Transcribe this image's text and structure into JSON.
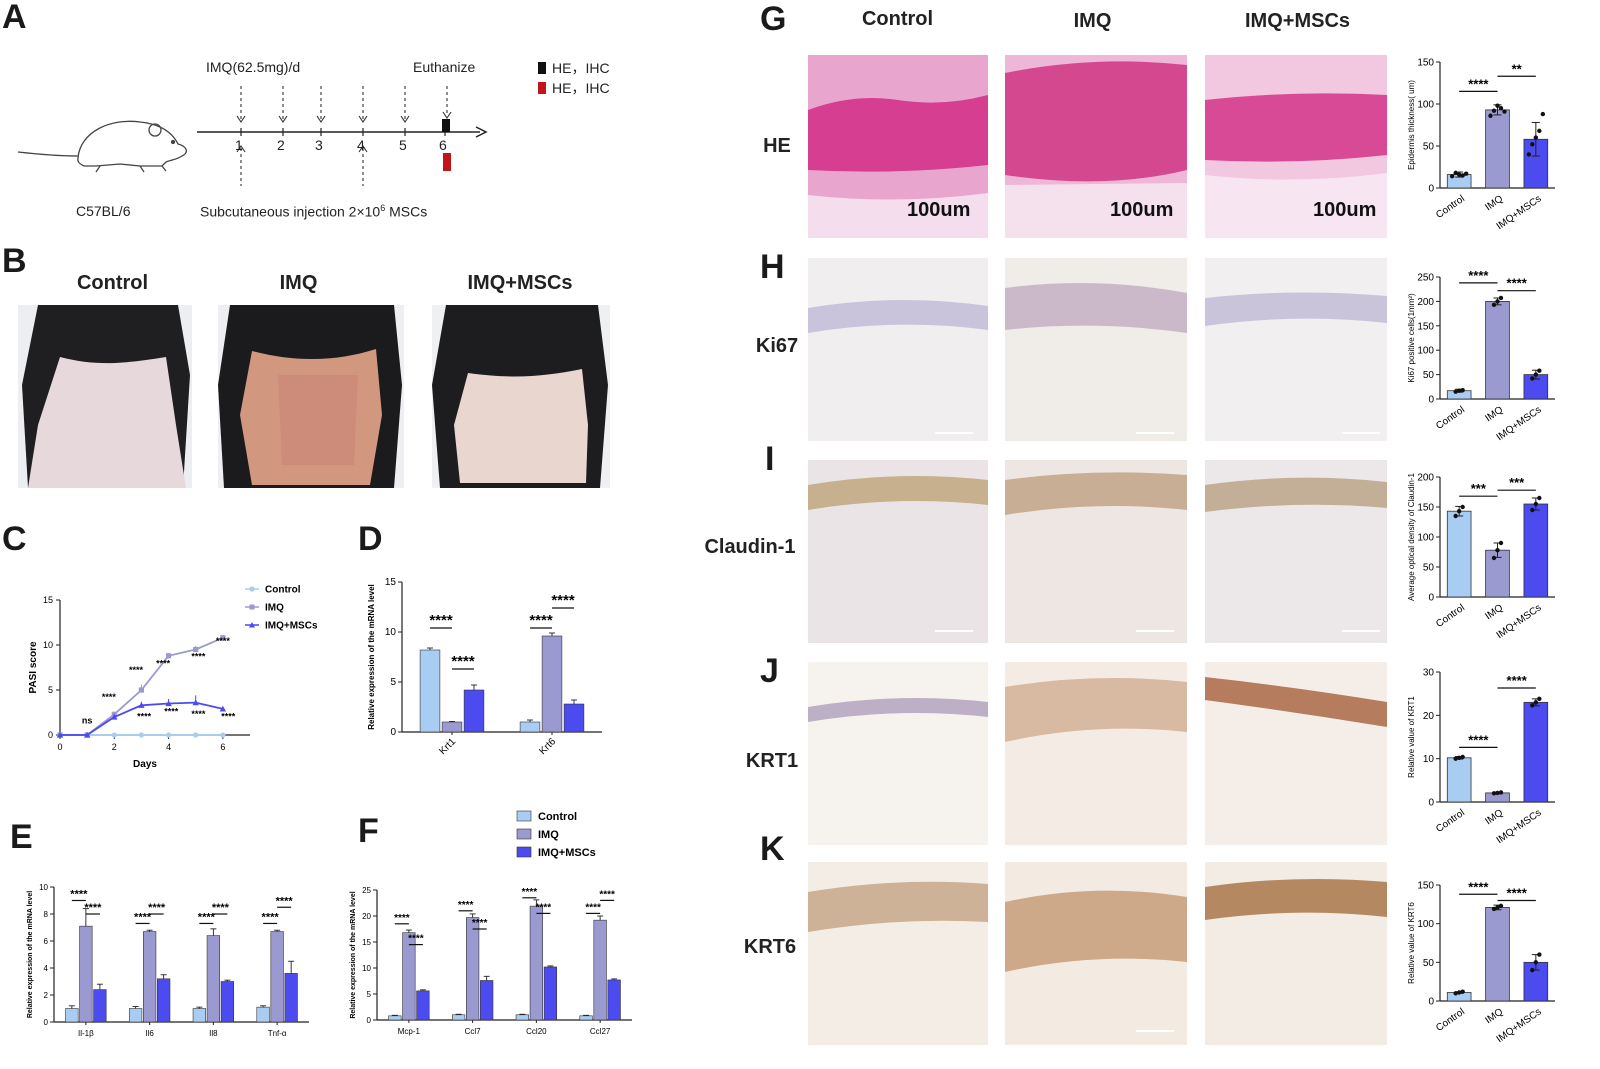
{
  "panel_letters": {
    "a": "A",
    "b": "B",
    "c": "C",
    "d": "D",
    "e": "E",
    "f": "F",
    "g": "G",
    "h": "H",
    "i": "I",
    "j": "J",
    "k": "K"
  },
  "colors": {
    "control": "#a9cdf2",
    "imq": "#9a9ad0",
    "imq_mscs": "#4b4bf0",
    "axis": "#222222",
    "he_bg": "#e8a6cf",
    "he_epi": "#d63f91",
    "ihc_bg": "#f3ede4",
    "dermis": "#ece2f0"
  },
  "panel_a": {
    "drug_label": "IMQ(62.5mg)/d",
    "euthanize_label": "Euthanize",
    "legend": [
      "HE，IHC",
      "HE，IHC"
    ],
    "legend_colors": [
      "#111111",
      "#c0161b"
    ],
    "days": [
      "1",
      "2",
      "3",
      "4",
      "5",
      "6"
    ],
    "mouse_strain": "C57BL/6",
    "injection_label": "Subcutaneous injection 2×10",
    "injection_sup": "6",
    "injection_tail": " MSCs"
  },
  "panel_b": {
    "groups": [
      "Control",
      "IMQ",
      "IMQ+MSCs"
    ]
  },
  "panel_g_headers": [
    "Control",
    "IMQ",
    "IMQ+MSCs"
  ],
  "row_labels": {
    "he": "HE",
    "ki67": "Ki67",
    "claudin": "Claudin-1",
    "krt1": "KRT1",
    "krt6": "KRT6"
  },
  "scale_text": "100um",
  "chart_data": [
    {
      "id": "C",
      "type": "line",
      "xlabel": "Days",
      "ylabel": "PASI score",
      "x": [
        0,
        1,
        2,
        3,
        4,
        5,
        6
      ],
      "xticks": [
        0,
        2,
        4,
        6
      ],
      "yticks": [
        0,
        5,
        10,
        15
      ],
      "ylim": [
        0,
        15
      ],
      "xlim": [
        0,
        7
      ],
      "series": [
        {
          "name": "Control",
          "marker": "circle",
          "values": [
            0,
            0,
            0,
            0,
            0,
            0,
            0
          ],
          "errors": [
            0,
            0,
            0,
            0,
            0,
            0,
            0
          ]
        },
        {
          "name": "IMQ",
          "marker": "square",
          "values": [
            0,
            0,
            2.3,
            5,
            8.8,
            9.5,
            10.8
          ],
          "errors": [
            0,
            0,
            0.3,
            0.6,
            0.3,
            0.4,
            0.3
          ]
        },
        {
          "name": "IMQ+MSCs",
          "marker": "triangle",
          "values": [
            0,
            0,
            2,
            3.3,
            3.5,
            3.6,
            2.9
          ],
          "errors": [
            0,
            0,
            0.3,
            0.4,
            0.5,
            0.8,
            0.2
          ]
        }
      ],
      "annotations": [
        {
          "x": 1,
          "y": 1.3,
          "text": "ns"
        },
        {
          "x": 1.8,
          "y": 3.9,
          "text": "****"
        },
        {
          "x": 2.8,
          "y": 6.9,
          "text": "****"
        },
        {
          "x": 3.8,
          "y": 7.6,
          "text": "****"
        },
        {
          "x": 5.1,
          "y": 8.4,
          "text": "****"
        },
        {
          "x": 6.0,
          "y": 10.1,
          "text": "****"
        },
        {
          "x": 3.1,
          "y": 1.7,
          "text": "****"
        },
        {
          "x": 4.1,
          "y": 2.3,
          "text": "****"
        },
        {
          "x": 5.1,
          "y": 2.0,
          "text": "****"
        },
        {
          "x": 6.2,
          "y": 1.7,
          "text": "****"
        }
      ]
    },
    {
      "id": "D",
      "type": "bar",
      "ylabel": "Relative expression of the mRNA level",
      "categories": [
        "Krt1",
        "Krt6"
      ],
      "yticks": [
        0,
        5,
        10,
        15
      ],
      "ylim": [
        0,
        15
      ],
      "series": [
        {
          "name": "Control",
          "values": [
            8.2,
            1.0
          ],
          "errors": [
            0.2,
            0.2
          ]
        },
        {
          "name": "IMQ",
          "values": [
            1.0,
            9.6
          ],
          "errors": [
            0.05,
            0.3
          ]
        },
        {
          "name": "IMQ+MSCs",
          "values": [
            4.2,
            2.8
          ],
          "errors": [
            0.5,
            0.4
          ]
        }
      ],
      "sig": [
        {
          "cat": 0,
          "from": 0,
          "to": 1,
          "y": 10.4,
          "text": "****"
        },
        {
          "cat": 0,
          "from": 1,
          "to": 2,
          "y": 6.3,
          "text": "****"
        },
        {
          "cat": 1,
          "from": 0,
          "to": 1,
          "y": 10.4,
          "text": "****"
        },
        {
          "cat": 1,
          "from": 1,
          "to": 2,
          "y": 12.4,
          "text": "****"
        }
      ]
    },
    {
      "id": "E",
      "type": "bar",
      "ylabel": "Relative expression of the mRNA level",
      "categories": [
        "Il-1β",
        "Il6",
        "Il8",
        "Tnf-α"
      ],
      "yticks": [
        0,
        2,
        4,
        6,
        8,
        10
      ],
      "ylim": [
        0,
        10
      ],
      "series": [
        {
          "name": "Control",
          "values": [
            1,
            1,
            1,
            1.1
          ],
          "errors": [
            0.2,
            0.15,
            0.1,
            0.1
          ]
        },
        {
          "name": "IMQ",
          "values": [
            7.1,
            6.7,
            6.4,
            6.7
          ],
          "errors": [
            1.3,
            0.1,
            0.5,
            0.1
          ]
        },
        {
          "name": "IMQ+MSCs",
          "values": [
            2.4,
            3.2,
            3.0,
            3.6
          ],
          "errors": [
            0.4,
            0.3,
            0.1,
            0.9
          ]
        }
      ],
      "sig": [
        {
          "cat": 0,
          "from": 0,
          "to": 1,
          "y": 9.0,
          "text": "****"
        },
        {
          "cat": 0,
          "from": 1,
          "to": 2,
          "y": 8.0,
          "text": "****"
        },
        {
          "cat": 1,
          "from": 0,
          "to": 1,
          "y": 7.3,
          "text": "****"
        },
        {
          "cat": 1,
          "from": 1,
          "to": 2,
          "y": 8.0,
          "text": "****"
        },
        {
          "cat": 2,
          "from": 0,
          "to": 1,
          "y": 7.3,
          "text": "****"
        },
        {
          "cat": 2,
          "from": 1,
          "to": 2,
          "y": 8.0,
          "text": "****"
        },
        {
          "cat": 3,
          "from": 0,
          "to": 1,
          "y": 7.3,
          "text": "****"
        },
        {
          "cat": 3,
          "from": 1,
          "to": 2,
          "y": 8.5,
          "text": "****"
        }
      ]
    },
    {
      "id": "F",
      "type": "bar",
      "ylabel": "Relative expression of the mRNA level",
      "categories": [
        "Mcp-1",
        "Ccl7",
        "Ccl20",
        "Ccl27"
      ],
      "yticks": [
        0,
        5,
        10,
        15,
        20,
        25
      ],
      "ylim": [
        0,
        25
      ],
      "legend": [
        "Control",
        "IMQ",
        "IMQ+MSCs"
      ],
      "series": [
        {
          "name": "Control",
          "values": [
            0.8,
            1.0,
            1.0,
            0.8
          ],
          "errors": [
            0.1,
            0.1,
            0.1,
            0.1
          ]
        },
        {
          "name": "IMQ",
          "values": [
            16.8,
            19.7,
            21.9,
            19.2
          ],
          "errors": [
            0.5,
            0.7,
            1.2,
            0.8
          ]
        },
        {
          "name": "IMQ+MSCs",
          "values": [
            5.6,
            7.6,
            10.2,
            7.7
          ],
          "errors": [
            0.2,
            0.8,
            0.2,
            0.2
          ]
        }
      ],
      "sig": [
        {
          "cat": 0,
          "from": 0,
          "to": 1,
          "y": 18.5,
          "text": "****"
        },
        {
          "cat": 0,
          "from": 1,
          "to": 2,
          "y": 14.5,
          "text": "****"
        },
        {
          "cat": 1,
          "from": 0,
          "to": 1,
          "y": 21.0,
          "text": "****"
        },
        {
          "cat": 1,
          "from": 1,
          "to": 2,
          "y": 17.5,
          "text": "****"
        },
        {
          "cat": 2,
          "from": 0,
          "to": 1,
          "y": 23.5,
          "text": "****"
        },
        {
          "cat": 2,
          "from": 1,
          "to": 2,
          "y": 20.5,
          "text": "****"
        },
        {
          "cat": 3,
          "from": 0,
          "to": 1,
          "y": 20.5,
          "text": "****"
        },
        {
          "cat": 3,
          "from": 1,
          "to": 2,
          "y": 23.0,
          "text": "****"
        }
      ]
    },
    {
      "id": "G",
      "type": "bar",
      "ylabel": "Epidermis thickness( um)",
      "categories": [
        "Control",
        "IMQ",
        "IMQ+MSCs"
      ],
      "values": [
        16,
        93,
        58
      ],
      "errors": [
        3,
        6,
        20
      ],
      "yticks": [
        0,
        50,
        100,
        150
      ],
      "ylim": [
        0,
        150
      ],
      "points": [
        [
          14,
          18,
          16,
          15,
          17
        ],
        [
          86,
          92,
          98,
          95,
          91
        ],
        [
          40,
          52,
          60,
          68,
          88
        ]
      ],
      "sig": [
        {
          "from": 0,
          "to": 1,
          "y": 115,
          "text": "****"
        },
        {
          "from": 1,
          "to": 2,
          "y": 133,
          "text": "**"
        }
      ]
    },
    {
      "id": "H",
      "type": "bar",
      "ylabel": "Ki67 positive cells(1mm²)",
      "categories": [
        "Control",
        "IMQ",
        "IMQ+MSCs"
      ],
      "values": [
        17,
        200,
        50
      ],
      "errors": [
        3,
        7,
        9
      ],
      "yticks": [
        0,
        50,
        100,
        150,
        200,
        250
      ],
      "ylim": [
        0,
        250
      ],
      "points": [
        [
          15,
          17,
          18
        ],
        [
          193,
          200,
          207
        ],
        [
          42,
          50,
          58
        ]
      ],
      "sig": [
        {
          "from": 0,
          "to": 1,
          "y": 238,
          "text": "****"
        },
        {
          "from": 1,
          "to": 2,
          "y": 222,
          "text": "****"
        }
      ]
    },
    {
      "id": "I",
      "type": "bar",
      "ylabel": "Average optical density of Claudin-1",
      "categories": [
        "Control",
        "IMQ",
        "IMQ+MSCs"
      ],
      "values": [
        143,
        78,
        155
      ],
      "errors": [
        8,
        12,
        10
      ],
      "yticks": [
        0,
        50,
        100,
        150,
        200
      ],
      "ylim": [
        0,
        200
      ],
      "points": [
        [
          135,
          143,
          150
        ],
        [
          65,
          78,
          90
        ],
        [
          145,
          155,
          165
        ]
      ],
      "sig": [
        {
          "from": 0,
          "to": 1,
          "y": 168,
          "text": "***"
        },
        {
          "from": 1,
          "to": 2,
          "y": 178,
          "text": "***"
        }
      ]
    },
    {
      "id": "J",
      "type": "bar",
      "ylabel": "Relative value of KRT1",
      "categories": [
        "Control",
        "IMQ",
        "IMQ+MSCs"
      ],
      "values": [
        10.2,
        2.1,
        23
      ],
      "errors": [
        0.3,
        0.15,
        0.8
      ],
      "yticks": [
        0,
        10,
        20,
        30
      ],
      "ylim": [
        0,
        30
      ],
      "points": [
        [
          10,
          10.2,
          10.4
        ],
        [
          2,
          2.1,
          2.2
        ],
        [
          22.3,
          23,
          23.8
        ]
      ],
      "sig": [
        {
          "from": 0,
          "to": 1,
          "y": 12.6,
          "text": "****"
        },
        {
          "from": 1,
          "to": 2,
          "y": 26.3,
          "text": "****"
        }
      ]
    },
    {
      "id": "K",
      "type": "bar",
      "ylabel": "Relative value of KRT6",
      "categories": [
        "Control",
        "IMQ",
        "IMQ+MSCs"
      ],
      "values": [
        11,
        121,
        50
      ],
      "errors": [
        1,
        3,
        10
      ],
      "yticks": [
        0,
        50,
        100,
        150
      ],
      "ylim": [
        0,
        150
      ],
      "points": [
        [
          10,
          11,
          12
        ],
        [
          119,
          121,
          123
        ],
        [
          40,
          50,
          60
        ]
      ],
      "sig": [
        {
          "from": 0,
          "to": 1,
          "y": 138,
          "text": "****"
        },
        {
          "from": 1,
          "to": 2,
          "y": 130,
          "text": "****"
        }
      ]
    }
  ]
}
